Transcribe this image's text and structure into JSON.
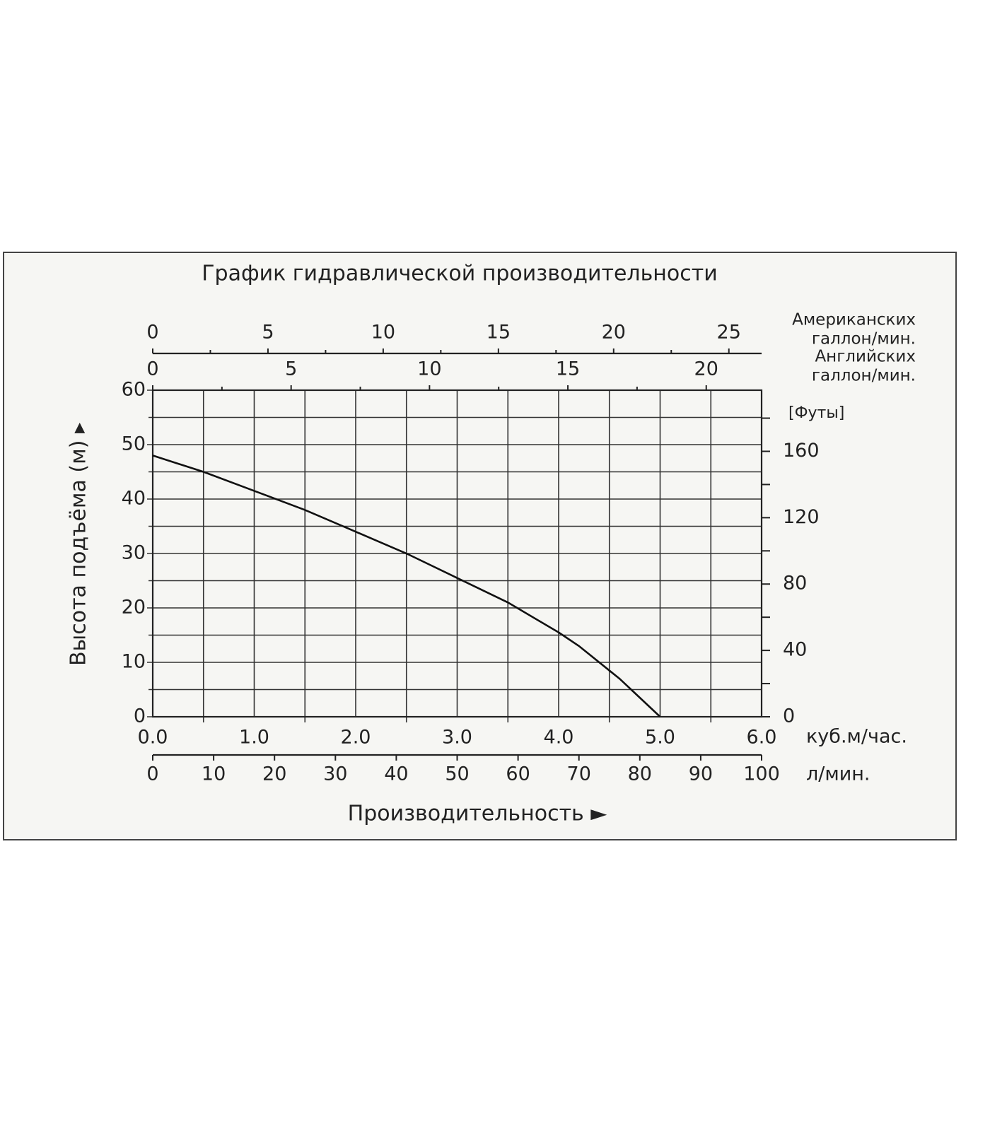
{
  "chart_data": {
    "type": "line",
    "title": "График гидравлической производительности",
    "xlabel": "Производительность ►",
    "ylabel": "Высота подъёма (м) ▸",
    "x_unit": "куб.м/час.",
    "x": [
      0,
      0.5,
      1.0,
      1.5,
      2.0,
      2.5,
      3.0,
      3.5,
      4.0,
      4.2,
      4.5,
      4.6,
      5.0
    ],
    "series": [
      {
        "color": "#111111",
        "values": [
          48,
          45,
          41.5,
          38,
          34,
          30,
          25.5,
          21,
          15.5,
          13,
          8.5,
          7,
          0
        ]
      }
    ],
    "xlim": [
      0,
      6
    ],
    "xticks": [
      {
        "value": 0,
        "label": "0.0"
      },
      {
        "value": 1,
        "label": "1.0"
      },
      {
        "value": 2,
        "label": "2.0"
      },
      {
        "value": 3,
        "label": "3.0"
      },
      {
        "value": 4,
        "label": "4.0"
      },
      {
        "value": 5,
        "label": "5.0"
      },
      {
        "value": 6,
        "label": "6.0"
      }
    ],
    "minor_xticks": [
      0.5,
      1.5,
      2.5,
      3.5,
      4.5,
      5.5
    ],
    "ylim": [
      0,
      60
    ],
    "yticks": [
      0,
      10,
      20,
      30,
      40,
      50,
      60
    ],
    "minor_yticks": [
      5,
      15,
      25,
      35,
      45,
      55
    ],
    "y2label": "[Футы]",
    "y2lim": [
      0,
      196.85
    ],
    "y2ticks": [
      0,
      40,
      80,
      120,
      160
    ],
    "minor_y2ticks": [
      20,
      60,
      100,
      140,
      180
    ],
    "grid": true,
    "top_axes": [
      {
        "label": [
          "Американских",
          "галлон/мин."
        ],
        "lim": [
          0,
          26.42
        ],
        "ticks": [
          0,
          5,
          10,
          15,
          20,
          25
        ],
        "minor_ticks": [
          2.5,
          7.5,
          12.5,
          17.5,
          22.5
        ]
      },
      {
        "label": [
          "Английских",
          "галлон/мин."
        ],
        "lim": [
          0,
          22
        ],
        "ticks": [
          0,
          5,
          10,
          15,
          20
        ],
        "minor_ticks": [
          2.5,
          7.5,
          12.5,
          17.5
        ]
      }
    ],
    "bottom_axes": [
      {
        "label": [
          "л/мин."
        ],
        "lim": [
          0,
          100
        ],
        "ticks": [
          0,
          10,
          20,
          30,
          40,
          50,
          60,
          70,
          80,
          90,
          100
        ]
      }
    ]
  }
}
